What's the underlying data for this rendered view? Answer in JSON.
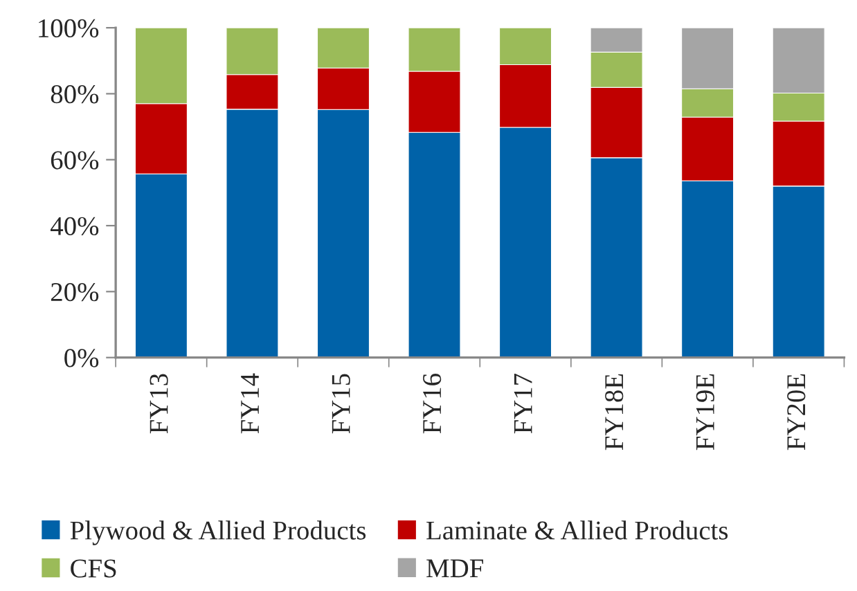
{
  "chart_data": {
    "type": "bar",
    "stacked": true,
    "categories": [
      "FY13",
      "FY14",
      "FY15",
      "FY16",
      "FY17",
      "FY18E",
      "FY19E",
      "FY20E"
    ],
    "series": [
      {
        "name": "Plywood & Allied Products",
        "color": "#0062a8",
        "values": [
          55.7,
          75.3,
          75.2,
          68.3,
          69.8,
          60.6,
          53.6,
          52.0
        ]
      },
      {
        "name": "Laminate & Allied Products",
        "color": "#c00000",
        "values": [
          21.3,
          10.5,
          12.6,
          18.5,
          19.0,
          21.3,
          19.3,
          19.7
        ]
      },
      {
        "name": "CFS",
        "color": "#9bbb59",
        "values": [
          23.0,
          14.2,
          12.2,
          13.2,
          11.2,
          10.7,
          8.6,
          8.5
        ]
      },
      {
        "name": "MDF",
        "color": "#a5a5a5",
        "values": [
          null,
          null,
          null,
          null,
          null,
          7.4,
          18.5,
          19.8
        ]
      }
    ],
    "ylim": [
      0,
      100
    ],
    "yticks": [
      {
        "value": 0,
        "label": "0%"
      },
      {
        "value": 20,
        "label": "20%"
      },
      {
        "value": 40,
        "label": "40%"
      },
      {
        "value": 60,
        "label": "60%"
      },
      {
        "value": 80,
        "label": "80%"
      },
      {
        "value": 100,
        "label": "100%"
      }
    ],
    "grid": false,
    "legend": "bottom"
  }
}
